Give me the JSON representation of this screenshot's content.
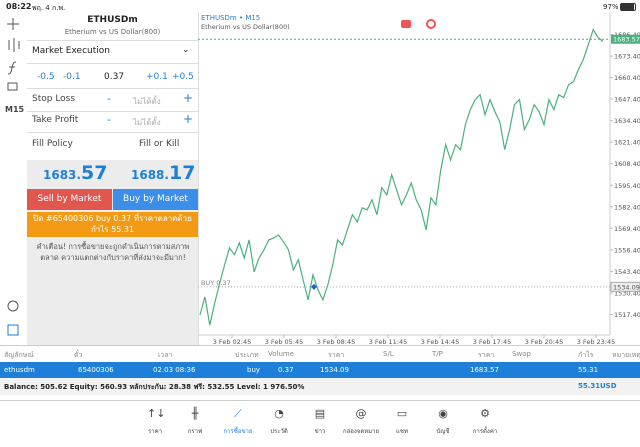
{
  "status_bar": {
    "time": "08:22",
    "date": "พฤ. 4 ก.พ.",
    "battery": "97%"
  },
  "toolbar": {
    "timeframe": "M15"
  },
  "order_panel": {
    "symbol": "ETHUSDm",
    "description": "Etherium vs US Dollar(800)",
    "execution": "Market Execution",
    "volume_steps": [
      "-0.5",
      "-0.1",
      "0.37",
      "+0.1",
      "+0.5"
    ],
    "stop_loss": {
      "label": "Stop Loss",
      "minus": "-",
      "value": "ไม่ได้ตั้ง",
      "plus": "+"
    },
    "take_profit": {
      "label": "Take Profit",
      "minus": "-",
      "value": "ไม่ได้ตั้ง",
      "plus": "+"
    },
    "fill_policy": {
      "label": "Fill Policy",
      "value": "Fill or Kill"
    },
    "bid": [
      "1683.",
      "57"
    ],
    "ask": [
      "1688.",
      "17"
    ],
    "sell_button": "Sell by Market",
    "buy_button": "Buy by Market",
    "close_button": "ปิด #65400306 buy 0.37 ที่ราคาตลาดด้วยกำไร 55.31",
    "warning": "คำเตือน! การซื้อขายจะถูกดำเนินการตามสภาพตลาด ความแตกต่างกับราคาที่ส่งมาจะมีมาก!"
  },
  "chart_data": {
    "type": "line",
    "title": "ETHUSDm • M15",
    "subtitle": "Etherium vs US Dollar(800)",
    "color": "#4caf7d",
    "values": [
      1517.1,
      1528.0,
      1511.0,
      1524.3,
      1536.4,
      1547.3,
      1557.6,
      1553.4,
      1560.6,
      1551.5,
      1562.4,
      1543.1,
      1551.5,
      1556.4,
      1562.4,
      1563.6,
      1565.4,
      1561.2,
      1556.4,
      1544.3,
      1550.4,
      1538.2,
      1526.2,
      1541.3,
      1532.2,
      1526.2,
      1535.2,
      1547.3,
      1562.4,
      1559.4,
      1568.5,
      1577.6,
      1573.3,
      1581.8,
      1580.6,
      1586.6,
      1577.6,
      1593.9,
      1589.6,
      1601.7,
      1592.7,
      1583.6,
      1589.6,
      1596.9,
      1586.6,
      1580.6,
      1568.5,
      1587.8,
      1583.6,
      1604.8,
      1619.9,
      1610.8,
      1619.9,
      1616.9,
      1632.0,
      1641.0,
      1647.1,
      1650.1,
      1638.0,
      1647.1,
      1639.8,
      1633.8,
      1616.9,
      1629.0,
      1644.1,
      1647.1,
      1629.0,
      1635.0,
      1644.1,
      1639.8,
      1632.0,
      1647.1,
      1641.0,
      1650.1,
      1648.3,
      1656.2,
      1658.0,
      1665.2,
      1671.3,
      1680.4,
      1689.4,
      1684.6,
      1682.2
    ],
    "ylim": [
      1505,
      1700
    ],
    "yticks": [
      {
        "value": 1686.4,
        "label": "1686.40"
      },
      {
        "value": 1673.4,
        "label": "1673.40"
      },
      {
        "value": 1660.4,
        "label": "1660.40"
      },
      {
        "value": 1647.4,
        "label": "1647.40"
      },
      {
        "value": 1634.4,
        "label": "1634.40"
      },
      {
        "value": 1621.4,
        "label": "1621.40"
      },
      {
        "value": 1608.4,
        "label": "1608.40"
      },
      {
        "value": 1595.4,
        "label": "1595.40"
      },
      {
        "value": 1582.4,
        "label": "1582.40"
      },
      {
        "value": 1569.4,
        "label": "1569.40"
      },
      {
        "value": 1556.4,
        "label": "1556.40"
      },
      {
        "value": 1543.4,
        "label": "1543.40"
      },
      {
        "value": 1530.4,
        "label": "1530.40"
      },
      {
        "value": 1517.4,
        "label": "1517.40"
      }
    ],
    "xtick_labels": [
      "3 Feb 02:45",
      "3 Feb 05:45",
      "3 Feb 08:45",
      "3 Feb 11:45",
      "3 Feb 14:45",
      "3 Feb 17:45",
      "3 Feb 20:45",
      "3 Feb 23:45"
    ],
    "bid_line": 1683.57,
    "position_line": {
      "label": "BUY 0.37",
      "value": 1534.09
    }
  },
  "table": {
    "header": [
      "สัญลักษณ์",
      "ตั๋ว",
      "เวลา",
      "ประเภท",
      "Volume",
      "ราคา",
      "S/L",
      "T/P",
      "ราคา",
      "Swap",
      "กำไร",
      "หมายเหตุ"
    ],
    "rows": [
      [
        "ethusdm",
        "65400306",
        "02.03 08:36",
        "buy",
        "0.37",
        "1534.09",
        null,
        null,
        "1683.57",
        null,
        "55.31",
        null
      ]
    ],
    "summary": {
      "text": "Balance: 505.62 Equity: 560.93 หลักประกัน: 28.38 ฟรี: 532.55 Level: 1 976.50%",
      "profit": "55.31",
      "currency": "USD"
    }
  },
  "tabs": [
    "ราคา",
    "กราฟ",
    "การซื้อขาย",
    "ประวัติ",
    "ข่าว",
    "กล่องจดหมาย",
    "แชท",
    "บัญชี",
    "การตั้งค่า"
  ]
}
